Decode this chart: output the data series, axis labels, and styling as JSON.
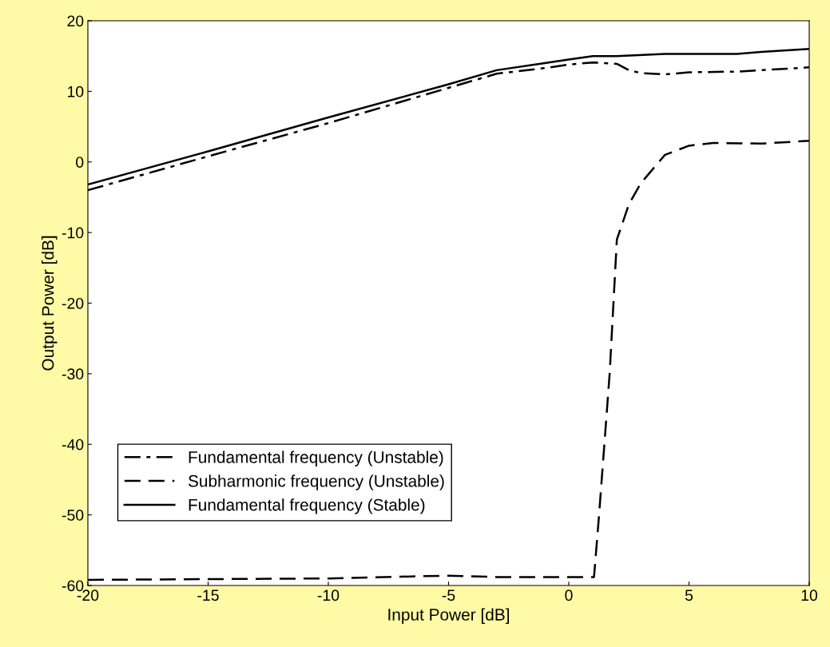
{
  "chart_data": {
    "type": "line",
    "xlabel": "Input Power [dB]",
    "ylabel": "Output Power [dB]",
    "xlim": [
      -20,
      10
    ],
    "ylim": [
      -60,
      20
    ],
    "xticks": [
      -20,
      -15,
      -10,
      -5,
      0,
      5,
      10
    ],
    "yticks": [
      -60,
      -50,
      -40,
      -30,
      -20,
      -10,
      0,
      10,
      20
    ],
    "grid": false,
    "legend": "bottom left",
    "marker": "none",
    "series": [
      {
        "name": "Fundamental frequency (Unstable)",
        "color": "#000000",
        "line_style": "dashdot",
        "x": [
          -20,
          -15,
          -10,
          -5,
          -3,
          -1,
          0,
          1,
          2,
          2.5,
          3,
          4,
          5,
          7,
          8,
          10
        ],
        "values": [
          -4,
          0.8,
          5.5,
          10.5,
          12.5,
          13.3,
          13.8,
          14.1,
          13.9,
          13.0,
          12.6,
          12.4,
          12.7,
          12.8,
          13.0,
          13.4
        ]
      },
      {
        "name": "Subharmonic frequency (Unstable)",
        "color": "#000000",
        "line_style": "dashed",
        "x": [
          -20,
          -10,
          -5,
          -3,
          1,
          1.05,
          1.26,
          1.7,
          2,
          2.5,
          3,
          4,
          5,
          6,
          8,
          10
        ],
        "values": [
          -59.2,
          -59,
          -58.6,
          -58.8,
          -58.8,
          -58.8,
          -50,
          -30,
          -11,
          -6,
          -3,
          1,
          2.3,
          2.7,
          2.6,
          3
        ]
      },
      {
        "name": "Fundamental frequency (Stable)",
        "color": "#000000",
        "line_style": "solid",
        "x": [
          -20,
          -15,
          -10,
          -5,
          -3,
          -1,
          0,
          1,
          2,
          4,
          7,
          8,
          10
        ],
        "values": [
          -3.2,
          1.5,
          6.3,
          11,
          13,
          14,
          14.5,
          15,
          15,
          15.3,
          15.3,
          15.6,
          16
        ]
      }
    ]
  }
}
